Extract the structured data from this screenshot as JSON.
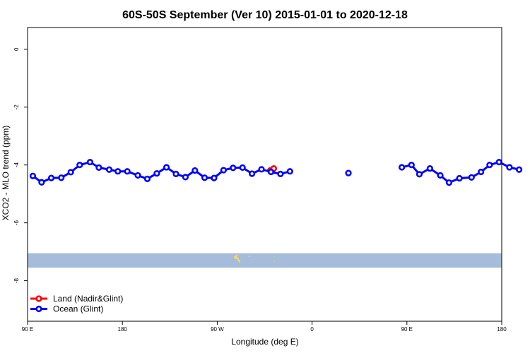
{
  "chart_data": {
    "type": "line",
    "title": "60S-50S September (Ver 10)   2015-01-01 to 2020-12-18",
    "xlabel": "Longitude (deg E)",
    "ylabel": "XCO2 - MLO trend (ppm)",
    "xlim": [
      -90,
      180
    ],
    "ylim": [
      -9.4,
      0.75
    ],
    "x_axis_style": "longitude wraps at 180 (East 90E..180, then 180W..0..180E)",
    "x_ticks": [
      {
        "pos": -90,
        "label": "90 E"
      },
      {
        "pos": -36,
        "label": "180"
      },
      {
        "pos": 18,
        "label": "90 W"
      },
      {
        "pos": 72,
        "label": "0"
      },
      {
        "pos": 126,
        "label": "90 E"
      },
      {
        "pos": 180,
        "label": "180"
      }
    ],
    "y_ticks": [
      {
        "value": 0,
        "label": "0"
      },
      {
        "value": -2,
        "label": "-2"
      },
      {
        "value": -4,
        "label": "-4"
      },
      {
        "value": -6,
        "label": "-6"
      },
      {
        "value": -8,
        "label": "-8"
      }
    ],
    "grid": false,
    "legend_position": "bottom-left",
    "map_strip": {
      "y_range": [
        -7.55,
        -7.05
      ],
      "ocean_color": "#a5bcda",
      "land_color": "#f5d56e"
    },
    "series": [
      {
        "name": "Land (Nadir&Glint)",
        "color": "#ff0000",
        "points": [
          {
            "x": 48.2,
            "y": -4.19
          },
          {
            "x": 50.2,
            "y": -4.12
          }
        ]
      },
      {
        "name": "Ocean (Glint)",
        "color": "#0000ff",
        "points": [
          {
            "x": -87.0,
            "y": -4.38
          },
          {
            "x": -82.0,
            "y": -4.6
          },
          {
            "x": -76.5,
            "y": -4.45
          },
          {
            "x": -70.8,
            "y": -4.44
          },
          {
            "x": -65.4,
            "y": -4.25
          },
          {
            "x": -60.3,
            "y": -4.0
          },
          {
            "x": -54.4,
            "y": -3.9
          },
          {
            "x": -49.4,
            "y": -4.09
          },
          {
            "x": -43.5,
            "y": -4.16
          },
          {
            "x": -38.6,
            "y": -4.22
          },
          {
            "x": -33.2,
            "y": -4.22
          },
          {
            "x": -27.2,
            "y": -4.36
          },
          {
            "x": -21.8,
            "y": -4.48
          },
          {
            "x": -16.4,
            "y": -4.29
          },
          {
            "x": -10.9,
            "y": -4.08
          },
          {
            "x": -5.5,
            "y": -4.31
          },
          {
            "x": -0.1,
            "y": -4.42
          },
          {
            "x": 5.3,
            "y": -4.19
          },
          {
            "x": 10.8,
            "y": -4.44
          },
          {
            "x": 16.2,
            "y": -4.45
          },
          {
            "x": 21.6,
            "y": -4.18
          },
          {
            "x": 27.0,
            "y": -4.1
          },
          {
            "x": 32.4,
            "y": -4.09
          },
          {
            "x": 37.8,
            "y": -4.3
          },
          {
            "x": 43.2,
            "y": -4.15
          },
          {
            "x": 48.6,
            "y": -4.24
          },
          {
            "x": 54.0,
            "y": -4.31
          },
          {
            "x": 59.4,
            "y": -4.22
          },
          {
            "x": 92.7,
            "y": -4.28
          },
          {
            "x": 123.1,
            "y": -4.08
          },
          {
            "x": 128.6,
            "y": -4.0
          },
          {
            "x": 133.1,
            "y": -4.32
          },
          {
            "x": 139.1,
            "y": -4.12
          },
          {
            "x": 145.0,
            "y": -4.36
          },
          {
            "x": 150.0,
            "y": -4.61
          },
          {
            "x": 155.9,
            "y": -4.46
          },
          {
            "x": 162.8,
            "y": -4.43
          },
          {
            "x": 168.2,
            "y": -4.24
          },
          {
            "x": 173.1,
            "y": -4.0
          },
          {
            "x": 178.5,
            "y": -3.9
          },
          {
            "x": 184.4,
            "y": -4.08
          },
          {
            "x": 189.9,
            "y": -4.16
          }
        ]
      }
    ]
  }
}
